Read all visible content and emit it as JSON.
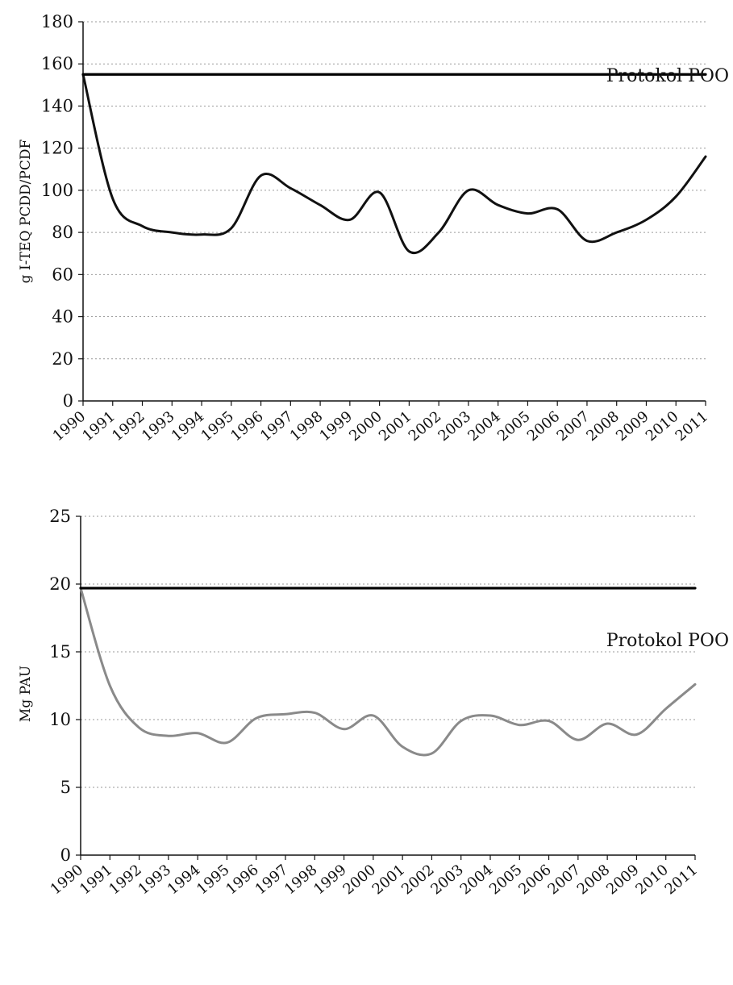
{
  "chart_data": [
    {
      "type": "line",
      "title": "",
      "ylabel": "g I-TEQ PCDD/PCDF",
      "xlabel": "",
      "ylim": [
        0,
        180
      ],
      "yticks": [
        "0",
        "20",
        "40",
        "60",
        "80",
        "100",
        "120",
        "140",
        "160",
        "180"
      ],
      "categories": [
        "1990",
        "1991",
        "1992",
        "1993",
        "1994",
        "1995",
        "1996",
        "1997",
        "1998",
        "1999",
        "2000",
        "2001",
        "2002",
        "2003",
        "2004",
        "2005",
        "2006",
        "2007",
        "2008",
        "2009",
        "2010",
        "2011"
      ],
      "grid": true,
      "series": [
        {
          "name": "",
          "values": [
            155,
            96,
            83,
            80,
            79,
            82,
            107,
            101,
            93,
            86,
            99,
            71,
            80,
            100,
            93,
            89,
            91,
            76,
            80,
            86,
            97,
            116
          ],
          "color": "#111111"
        },
        {
          "name": "Protokol POO",
          "values": [
            155,
            155,
            155,
            155,
            155,
            155,
            155,
            155,
            155,
            155,
            155,
            155,
            155,
            155,
            155,
            155,
            155,
            155,
            155,
            155,
            155,
            155
          ],
          "color": "#000000"
        }
      ]
    },
    {
      "type": "line",
      "title": "",
      "ylabel": "Mg PAU",
      "xlabel": "",
      "ylim": [
        0,
        25
      ],
      "yticks": [
        "0",
        "5",
        "10",
        "15",
        "20",
        "25"
      ],
      "categories": [
        "1990",
        "1991",
        "1992",
        "1993",
        "1994",
        "1995",
        "1996",
        "1997",
        "1998",
        "1999",
        "2000",
        "2001",
        "2002",
        "2003",
        "2004",
        "2005",
        "2006",
        "2007",
        "2008",
        "2009",
        "2010",
        "2011"
      ],
      "grid": true,
      "series": [
        {
          "name": "",
          "values": [
            19.7,
            12.5,
            9.4,
            8.8,
            9.0,
            8.3,
            10.1,
            10.4,
            10.5,
            9.3,
            10.3,
            8.0,
            7.5,
            9.9,
            10.3,
            9.6,
            9.9,
            8.5,
            9.7,
            8.9,
            10.8,
            12.6
          ],
          "color": "#8a8a8a"
        },
        {
          "name": "Protokol POO",
          "values": [
            19.7,
            19.7,
            19.7,
            19.7,
            19.7,
            19.7,
            19.7,
            19.7,
            19.7,
            19.7,
            19.7,
            19.7,
            19.7,
            19.7,
            19.7,
            19.7,
            19.7,
            19.7,
            19.7,
            19.7,
            19.7,
            19.7
          ],
          "color": "#000000"
        }
      ]
    }
  ]
}
